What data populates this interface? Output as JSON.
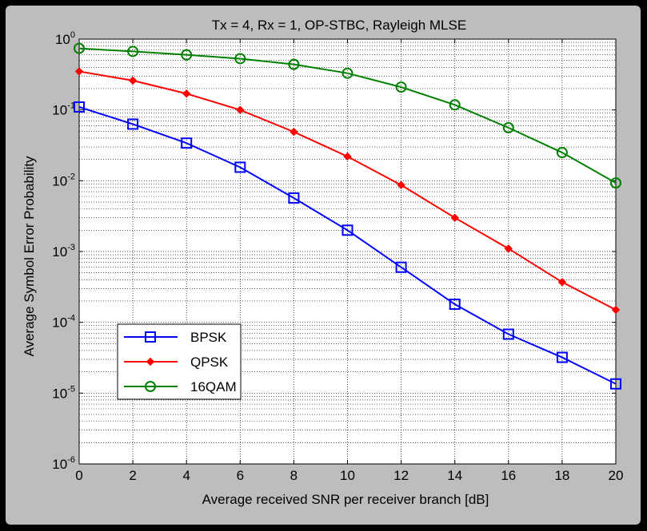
{
  "chart_data": {
    "type": "line",
    "title": "Tx = 4, Rx = 1, OP-STBC, Rayleigh MLSE",
    "xlabel": "Average received SNR per receiver branch [dB]",
    "ylabel": "Average Symbol Error Probability",
    "xlim": [
      0,
      20
    ],
    "ylim": [
      1e-06,
      1
    ],
    "yscale": "log",
    "grid": true,
    "legend_position": "lower-left",
    "x_ticks": [
      "0",
      "2",
      "4",
      "6",
      "8",
      "10",
      "12",
      "14",
      "16",
      "18",
      "20"
    ],
    "y_ticks": [
      {
        "base": "10",
        "exp": "0"
      },
      {
        "base": "10",
        "exp": "-1"
      },
      {
        "base": "10",
        "exp": "-2"
      },
      {
        "base": "10",
        "exp": "-3"
      },
      {
        "base": "10",
        "exp": "-4"
      },
      {
        "base": "10",
        "exp": "-5"
      },
      {
        "base": "10",
        "exp": "-6"
      }
    ],
    "x": [
      0,
      2,
      4,
      6,
      8,
      10,
      12,
      14,
      16,
      18,
      20
    ],
    "series": [
      {
        "name": "BPSK",
        "color": "#0000ff",
        "marker": "square",
        "values": [
          0.11,
          0.063,
          0.034,
          0.0155,
          0.0057,
          0.002,
          0.0006,
          0.00018,
          6.8e-05,
          3.2e-05,
          1.35e-05
        ]
      },
      {
        "name": "QPSK",
        "color": "#ff0000",
        "marker": "diamond",
        "values": [
          0.35,
          0.26,
          0.17,
          0.1,
          0.049,
          0.022,
          0.0087,
          0.003,
          0.0011,
          0.00037,
          0.00015
        ]
      },
      {
        "name": "16QAM",
        "color": "#008000",
        "marker": "circle",
        "values": [
          0.74,
          0.67,
          0.6,
          0.53,
          0.44,
          0.33,
          0.21,
          0.118,
          0.056,
          0.025,
          0.0093
        ]
      }
    ]
  }
}
